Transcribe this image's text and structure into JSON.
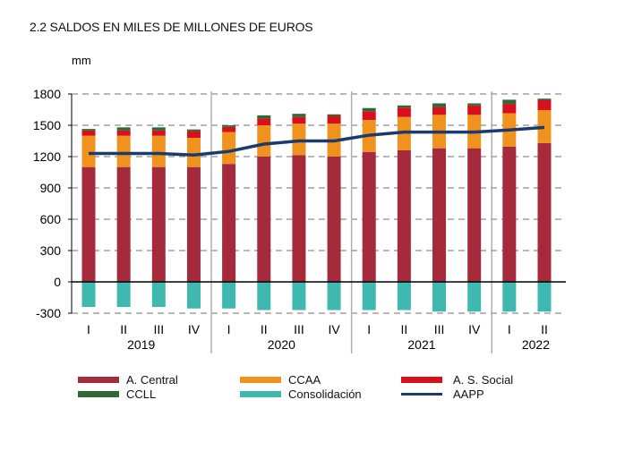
{
  "title": "2.2 SALDOS  EN MILES  DE MILLONES  DE EUROS",
  "chart_data": {
    "type": "bar",
    "stacked": true,
    "title": "2.2 SALDOS  EN MILES  DE MILLONES  DE EUROS",
    "ylabel": "mm",
    "xlabel": "",
    "ylim": [
      -300,
      1800
    ],
    "yticks": [
      1800,
      1500,
      1200,
      900,
      600,
      300,
      0,
      -300
    ],
    "grid": true,
    "legend_position": "bottom",
    "categories": [
      "I",
      "II",
      "III",
      "IV",
      "I",
      "II",
      "III",
      "IV",
      "I",
      "II",
      "III",
      "IV",
      "I",
      "II"
    ],
    "year_labels": [
      {
        "label": "2019",
        "start": 0,
        "end": 3
      },
      {
        "label": "2020",
        "start": 4,
        "end": 7
      },
      {
        "label": "2021",
        "start": 8,
        "end": 11
      },
      {
        "label": "2022",
        "start": 12,
        "end": 13
      }
    ],
    "series": [
      {
        "name": "A. Central",
        "kind": "bar",
        "color": "#a52a3c",
        "values": [
          1100,
          1100,
          1100,
          1100,
          1130,
          1200,
          1215,
          1200,
          1245,
          1260,
          1280,
          1280,
          1295,
          1330
        ]
      },
      {
        "name": "CCAA",
        "kind": "bar",
        "color": "#f0921e",
        "values": [
          300,
          300,
          300,
          280,
          305,
          300,
          300,
          315,
          305,
          320,
          320,
          320,
          320,
          315
        ]
      },
      {
        "name": "A. S. Social",
        "kind": "bar",
        "color": "#d7101e",
        "values": [
          50,
          50,
          50,
          65,
          50,
          65,
          65,
          75,
          85,
          90,
          75,
          90,
          90,
          95
        ]
      },
      {
        "name": "CCLL",
        "kind": "bar",
        "color": "#2e6b34",
        "values": [
          15,
          30,
          30,
          15,
          15,
          30,
          30,
          15,
          30,
          20,
          35,
          20,
          40,
          15
        ]
      },
      {
        "name": "Consolidación",
        "kind": "bar",
        "color": "#3fb8b0",
        "values": [
          -240,
          -240,
          -240,
          -255,
          -255,
          -270,
          -270,
          -270,
          -270,
          -270,
          -285,
          -285,
          -285,
          -285
        ]
      },
      {
        "name": "AAPP",
        "kind": "line",
        "color": "#1c3b6b",
        "values": [
          1230,
          1230,
          1230,
          1215,
          1250,
          1320,
          1350,
          1350,
          1405,
          1435,
          1435,
          1435,
          1455,
          1480
        ]
      }
    ]
  }
}
